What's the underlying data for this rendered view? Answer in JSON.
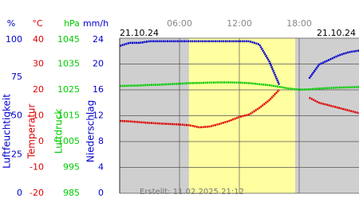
{
  "chart_data": {
    "type": "line",
    "date_left": "21.10.24",
    "date_right": "21.10.24",
    "footer": "Erstellt: 11.02.2025 21:12",
    "xlim": [
      0,
      24
    ],
    "xticks": [
      {
        "value": 6,
        "label": "06:00"
      },
      {
        "value": 12,
        "label": "12:00"
      },
      {
        "value": 18,
        "label": "18:00"
      }
    ],
    "daylight": [
      6.95,
      17.6
    ],
    "axes": [
      {
        "unit": "%",
        "title": "Luftfeuchtigkeit",
        "color": "#0000cc",
        "lim": [
          0,
          100
        ],
        "ticks": [
          0,
          25,
          50,
          75,
          100
        ]
      },
      {
        "unit": "°C",
        "title": "Temperatur",
        "color": "#dd0000",
        "lim": [
          -20,
          40
        ],
        "ticks": [
          -20,
          -10,
          0,
          10,
          20,
          30,
          40
        ]
      },
      {
        "unit": "hPa",
        "title": "Luftdruck",
        "color": "#00cc00",
        "lim": [
          985,
          1045
        ],
        "ticks": [
          985,
          995,
          1005,
          1015,
          1025,
          1035,
          1045
        ]
      },
      {
        "unit": "mm/h",
        "title": "Niederschlag",
        "color": "#0000cc",
        "lim": [
          0,
          24
        ],
        "ticks": [
          0,
          4,
          8,
          12,
          16,
          20,
          24
        ]
      }
    ],
    "x": [
      0,
      1,
      2,
      3,
      4,
      5,
      6,
      7,
      8,
      9,
      10,
      11,
      12,
      13,
      14,
      15,
      16,
      17,
      18,
      19,
      20,
      21,
      22,
      23,
      24
    ],
    "series": [
      {
        "name": "Luftfeuchtigkeit",
        "color": "#0000cc",
        "axis": 0,
        "values": [
          95,
          97,
          97,
          98,
          98,
          98,
          98,
          98,
          98,
          98,
          98,
          98,
          98,
          98,
          96,
          85,
          70,
          null,
          null,
          74,
          83,
          86,
          89,
          91,
          92
        ]
      },
      {
        "name": "Temperatur",
        "color": "#dd0000",
        "axis": 1,
        "values": [
          8,
          7.8,
          7.5,
          7.2,
          7,
          6.8,
          6.6,
          6.3,
          5.5,
          5.8,
          6.8,
          8,
          9.5,
          10.5,
          13,
          16,
          20,
          null,
          null,
          17,
          15,
          14,
          13,
          12,
          11
        ]
      },
      {
        "name": "Luftdruck",
        "color": "#00cc00",
        "axis": 2,
        "values": [
          1026.5,
          1026.6,
          1026.7,
          1026.9,
          1027,
          1027.2,
          1027.4,
          1027.6,
          1027.7,
          1027.8,
          1027.9,
          1027.9,
          1027.8,
          1027.6,
          1027.2,
          1026.8,
          1026.2,
          1025.5,
          1025.1,
          1025.2,
          1025.5,
          1025.7,
          1025.9,
          1026,
          1026.1
        ]
      }
    ]
  }
}
